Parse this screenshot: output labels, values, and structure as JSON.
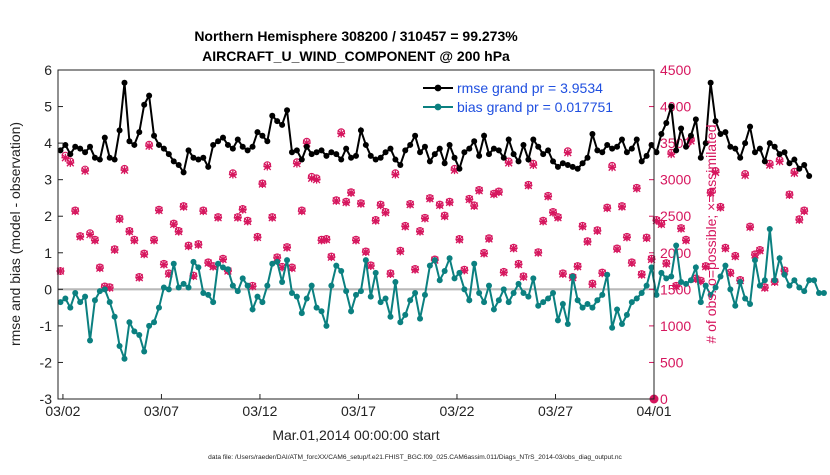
{
  "chart_data": {
    "type": "line",
    "title_line1": "Northern Hemisphere 308200 / 310457 = 99.273%",
    "title_line2": "AIRCRAFT_U_WIND_COMPONENT @ 200 hPa",
    "xlabel": "Mar.01,2014 00:00:00 start",
    "ylabel_left": "rmse and bias (model - observation)",
    "ylabel_right": "# of obs: o=possible; ×=assimilated",
    "footer": "data file: /Users/raeder/DAI/ATM_forcXX/CAM6_setup/f.e21.FHIST_BGC.f09_025.CAM6assim.011/Diags_NTrS_2014-03/obs_diag_output.nc",
    "x_ticks": [
      "03/02",
      "03/07",
      "03/12",
      "03/17",
      "03/22",
      "03/27",
      "04/01"
    ],
    "x_tick_days": [
      1,
      6,
      11,
      16,
      21,
      26,
      31
    ],
    "xlim_days": [
      0.75,
      31.0
    ],
    "ylim_left": [
      -3,
      6
    ],
    "yticks_left": [
      "-3",
      "-2",
      "-1",
      "0",
      "1",
      "2",
      "3",
      "4",
      "5",
      "6"
    ],
    "ylim_right": [
      0,
      4500
    ],
    "yticks_right": [
      "0",
      "500",
      "1000",
      "1500",
      "2000",
      "2500",
      "3000",
      "3500",
      "4000",
      "4500"
    ],
    "legend": [
      {
        "name": "rmse grand pr = 3.9534",
        "color": "#000000"
      },
      {
        "name": "bias grand pr = 0.017751",
        "color": "#0b8080"
      }
    ],
    "x_start_day": 0.875,
    "x_step_day": 0.25,
    "series": [
      {
        "name": "rmse",
        "color": "#000000",
        "values": [
          3.8,
          3.95,
          3.7,
          3.9,
          3.85,
          3.75,
          3.9,
          3.6,
          3.55,
          4.15,
          3.6,
          3.55,
          4.35,
          5.65,
          4.05,
          3.95,
          4.3,
          5.05,
          5.3,
          4.2,
          3.95,
          3.85,
          3.7,
          3.5,
          3.4,
          3.2,
          3.8,
          3.6,
          3.55,
          3.6,
          3.35,
          3.95,
          4.05,
          4.15,
          3.95,
          3.85,
          4.1,
          3.9,
          3.8,
          3.9,
          4.3,
          4.2,
          4.05,
          4.75,
          4.6,
          4.5,
          4.9,
          3.75,
          3.8,
          3.55,
          3.9,
          3.7,
          3.75,
          3.8,
          3.65,
          3.75,
          3.7,
          3.55,
          3.85,
          3.6,
          3.65,
          4.35,
          3.95,
          3.65,
          3.55,
          3.6,
          3.75,
          3.85,
          3.55,
          3.4,
          3.8,
          3.95,
          4.2,
          3.75,
          3.9,
          3.5,
          3.7,
          3.85,
          3.45,
          3.95,
          3.6,
          3.3,
          3.75,
          3.85,
          4.05,
          3.65,
          4.2,
          3.7,
          3.85,
          3.8,
          3.6,
          4.1,
          3.7,
          3.5,
          3.95,
          3.55,
          4.1,
          3.9,
          3.7,
          3.8,
          3.5,
          3.35,
          3.45,
          3.4,
          3.35,
          3.3,
          3.45,
          3.6,
          4.25,
          3.8,
          3.75,
          3.95,
          3.85,
          3.9,
          4.1,
          3.75,
          3.85,
          4.1,
          3.5,
          3.65,
          3.95,
          3.75,
          4.25,
          4.55,
          5.0,
          3.8,
          4.4,
          3.9,
          4.2,
          4.65,
          3.6,
          4.0,
          5.65,
          4.6,
          4.25,
          4.3,
          3.9,
          3.85,
          3.6,
          4.0,
          4.45,
          3.75,
          3.85,
          3.5,
          4.0,
          3.9,
          3.7,
          3.75,
          3.45,
          3.55,
          3.3,
          3.4,
          3.1
        ]
      },
      {
        "name": "bias",
        "color": "#0b8080",
        "values": [
          -0.35,
          -0.25,
          -0.5,
          -0.1,
          -0.35,
          -0.2,
          -1.4,
          -0.3,
          -0.05,
          0.0,
          -0.35,
          -0.75,
          -1.55,
          -1.9,
          -0.9,
          -1.15,
          -1.25,
          -1.7,
          -1.0,
          -0.9,
          -0.5,
          0.05,
          0.0,
          0.7,
          0.05,
          0.15,
          0.05,
          0.75,
          0.6,
          -0.1,
          -0.15,
          -0.35,
          0.7,
          0.6,
          0.55,
          0.1,
          -0.05,
          0.3,
          0.1,
          -0.55,
          -0.2,
          -0.35,
          0.1,
          0.7,
          0.75,
          0.2,
          0.8,
          -0.1,
          -0.2,
          -0.65,
          -0.25,
          0.1,
          -0.5,
          -0.6,
          -1.0,
          0.1,
          0.65,
          0.5,
          -0.05,
          -0.6,
          -0.15,
          -0.05,
          0.8,
          -0.2,
          0.45,
          -0.35,
          -0.25,
          -0.75,
          0.2,
          -0.9,
          -0.7,
          -0.3,
          -0.1,
          -0.8,
          -0.15,
          0.65,
          0.8,
          0.25,
          0.5,
          0.85,
          0.3,
          0.45,
          0.0,
          -0.3,
          0.7,
          -0.1,
          -0.35,
          0.1,
          -0.55,
          -0.3,
          0.0,
          -0.35,
          -0.1,
          0.15,
          -0.1,
          -0.2,
          0.3,
          -0.45,
          -0.35,
          -0.25,
          -0.1,
          -0.85,
          -0.4,
          -0.95,
          0.35,
          -0.3,
          -0.5,
          -0.4,
          -0.5,
          -0.3,
          -0.15,
          0.4,
          -1.05,
          -0.55,
          -0.95,
          -0.7,
          -0.35,
          -0.25,
          -0.1,
          0.1,
          0.6,
          -0.15,
          0.45,
          0.3,
          0.35,
          1.2,
          0.2,
          0.15,
          0.25,
          0.6,
          -0.35,
          0.1,
          -0.15,
          0.05,
          0.35,
          0.65,
          0.0,
          -0.45,
          0.2,
          -0.25,
          -0.4,
          0.8,
          0.1,
          0.25,
          1.65,
          0.25,
          0.85,
          0.4,
          0.1,
          0.25,
          0.05,
          -0.05,
          0.25,
          0.25,
          -0.1,
          -0.1
        ]
      },
      {
        "name": "obs_possible",
        "color": "#d6165e",
        "values": [
          1750,
          3330,
          3250,
          2580,
          2230,
          3140,
          2270,
          2180,
          1800,
          1540,
          1530,
          2050,
          2470,
          3150,
          2300,
          2180,
          1670,
          1990,
          3480,
          2180,
          2590,
          1850,
          1720,
          2400,
          2300,
          2640,
          2100,
          1690,
          2120,
          2580,
          1870,
          1820,
          2490,
          1920,
          1760,
          3090,
          2490,
          2600,
          2440,
          1550,
          2220,
          2950,
          3200,
          2490,
          1940,
          1810,
          2080,
          1800,
          3240,
          2580,
          3520,
          3040,
          3020,
          2180,
          2190,
          1950,
          2720,
          3650,
          2700,
          2830,
          2180,
          2680,
          2020,
          1830,
          2450,
          2660,
          2560,
          1720,
          3090,
          2030,
          2370,
          2670,
          1780,
          2300,
          2480,
          2750,
          1910,
          2660,
          2510,
          2700,
          3150,
          2190,
          1770,
          2740,
          2650,
          2860,
          2000,
          2200,
          2810,
          2840,
          1740,
          3250,
          2070,
          1850,
          1680,
          2930,
          3220,
          2010,
          2440,
          2780,
          2560,
          2490,
          1720,
          3390,
          1670,
          1820,
          2370,
          2160,
          1580,
          2310,
          1730,
          2620,
          3190,
          2060,
          2640,
          2220,
          1870,
          2890,
          1710,
          2210,
          1920,
          2450,
          2400,
          1860,
          3370,
          1550,
          2340,
          2180,
          3550,
          1650,
          1620,
          1820,
          2830,
          3120,
          2630,
          2070,
          1730,
          1960,
          1630,
          3080,
          2360,
          1980,
          2040,
          1530,
          3220,
          1610,
          3270,
          1760,
          2800,
          3110,
          2460,
          2580
        ]
      },
      {
        "name": "obs_assimilated",
        "color": "#d6165e",
        "values": [
          1750,
          3300,
          3230,
          2570,
          2220,
          3120,
          2250,
          2170,
          1790,
          1530,
          1520,
          2040,
          2460,
          3130,
          2290,
          2170,
          1660,
          1980,
          3460,
          2170,
          2580,
          1840,
          1710,
          2390,
          2290,
          2630,
          2090,
          1680,
          2110,
          2570,
          1860,
          1810,
          2480,
          1910,
          1750,
          3070,
          2480,
          2590,
          2430,
          1540,
          2210,
          2940,
          3180,
          2480,
          1930,
          1800,
          2070,
          1790,
          3220,
          2570,
          3500,
          3020,
          3000,
          2170,
          2180,
          1940,
          2710,
          3630,
          2690,
          2820,
          2170,
          2670,
          2010,
          1820,
          2440,
          2650,
          2550,
          1710,
          3070,
          2020,
          2360,
          2660,
          1770,
          2290,
          2470,
          2740,
          1900,
          2650,
          2500,
          2690,
          3130,
          2180,
          1760,
          2730,
          2640,
          2850,
          1990,
          2190,
          2800,
          2830,
          1730,
          3230,
          2060,
          1840,
          1670,
          2920,
          3200,
          2000,
          2430,
          2770,
          2550,
          2480,
          1710,
          3370,
          1660,
          1810,
          2360,
          2150,
          1570,
          2300,
          1720,
          2610,
          3170,
          2050,
          2630,
          2210,
          1860,
          2880,
          1700,
          2200,
          1910,
          2440,
          2390,
          1850,
          3350,
          1540,
          2330,
          2170,
          3530,
          1640,
          1610,
          1810,
          2820,
          3100,
          2620,
          2060,
          1720,
          1950,
          1620,
          3060,
          2350,
          1970,
          2030,
          1520,
          3200,
          1600,
          3250,
          1750,
          2790,
          3090,
          2450,
          2570
        ]
      }
    ],
    "extra_points": [
      {
        "x_day": 31.0,
        "count": 0
      }
    ]
  }
}
